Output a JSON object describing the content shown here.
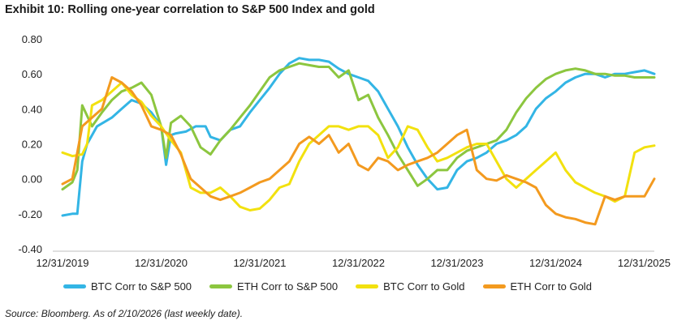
{
  "title": "Exhibit 10: Rolling one-year correlation to S&P 500 Index and gold",
  "source": "Source: Bloomberg. As of 2/10/2026 (last weekly date).",
  "chart_data": {
    "type": "line",
    "x_tick_labels": [
      "12/31/2019",
      "12/31/2020",
      "12/31/2021",
      "12/31/2022",
      "12/31/2023",
      "12/31/2024",
      "12/31/2025"
    ],
    "y_tick_labels": [
      "0.80",
      "0.60",
      "0.40",
      "0.20",
      "0.00",
      "-0.20",
      "-0.40"
    ],
    "ylim": [
      -0.4,
      0.8
    ],
    "xlim": [
      2020.0,
      2026.0
    ],
    "grid": false,
    "legend": "bottom",
    "series": [
      {
        "name": "BTC Corr to S&P 500",
        "color": "#33b5e5",
        "x": [
          2020.0,
          2020.1,
          2020.15,
          2020.2,
          2020.25,
          2020.35,
          2020.5,
          2020.6,
          2020.7,
          2020.8,
          2020.9,
          2021.0,
          2021.05,
          2021.1,
          2021.15,
          2021.25,
          2021.35,
          2021.45,
          2021.5,
          2021.6,
          2021.7,
          2021.8,
          2021.9,
          2022.0,
          2022.1,
          2022.2,
          2022.3,
          2022.4,
          2022.5,
          2022.6,
          2022.7,
          2022.8,
          2022.9,
          2023.0,
          2023.1,
          2023.2,
          2023.3,
          2023.4,
          2023.5,
          2023.6,
          2023.7,
          2023.8,
          2023.9,
          2024.0,
          2024.1,
          2024.2,
          2024.3,
          2024.4,
          2024.5,
          2024.6,
          2024.7,
          2024.8,
          2024.9,
          2025.0,
          2025.1,
          2025.2,
          2025.3,
          2025.4,
          2025.5,
          2025.6,
          2025.7,
          2025.8,
          2025.9,
          2026.0
        ],
        "values": [
          -0.21,
          -0.2,
          -0.2,
          0.1,
          0.2,
          0.3,
          0.35,
          0.4,
          0.45,
          0.43,
          0.38,
          0.3,
          0.08,
          0.25,
          0.26,
          0.27,
          0.3,
          0.3,
          0.24,
          0.22,
          0.28,
          0.3,
          0.38,
          0.45,
          0.52,
          0.6,
          0.66,
          0.69,
          0.68,
          0.68,
          0.67,
          0.63,
          0.6,
          0.58,
          0.56,
          0.5,
          0.4,
          0.3,
          0.18,
          0.08,
          0.0,
          -0.06,
          -0.05,
          0.05,
          0.1,
          0.12,
          0.15,
          0.2,
          0.22,
          0.25,
          0.3,
          0.4,
          0.46,
          0.5,
          0.55,
          0.58,
          0.6,
          0.6,
          0.58,
          0.6,
          0.6,
          0.61,
          0.62,
          0.6
        ]
      },
      {
        "name": "ETH Corr to S&P 500",
        "color": "#8cc63f",
        "x": [
          2020.0,
          2020.1,
          2020.15,
          2020.2,
          2020.3,
          2020.4,
          2020.5,
          2020.6,
          2020.7,
          2020.8,
          2020.9,
          2021.0,
          2021.05,
          2021.1,
          2021.2,
          2021.3,
          2021.4,
          2021.5,
          2021.6,
          2021.7,
          2021.8,
          2021.9,
          2022.0,
          2022.1,
          2022.2,
          2022.3,
          2022.4,
          2022.5,
          2022.6,
          2022.7,
          2022.8,
          2022.9,
          2023.0,
          2023.1,
          2023.2,
          2023.3,
          2023.4,
          2023.5,
          2023.6,
          2023.7,
          2023.8,
          2023.9,
          2024.0,
          2024.1,
          2024.2,
          2024.3,
          2024.4,
          2024.5,
          2024.6,
          2024.7,
          2024.8,
          2024.9,
          2025.0,
          2025.1,
          2025.2,
          2025.3,
          2025.4,
          2025.5,
          2025.6,
          2025.7,
          2025.8,
          2025.9,
          2026.0
        ],
        "values": [
          -0.06,
          -0.02,
          0.05,
          0.42,
          0.3,
          0.38,
          0.45,
          0.5,
          0.52,
          0.55,
          0.48,
          0.3,
          0.12,
          0.32,
          0.36,
          0.3,
          0.18,
          0.14,
          0.22,
          0.28,
          0.35,
          0.42,
          0.5,
          0.58,
          0.62,
          0.64,
          0.66,
          0.65,
          0.64,
          0.64,
          0.58,
          0.62,
          0.45,
          0.48,
          0.35,
          0.25,
          0.14,
          0.05,
          -0.04,
          0.0,
          0.05,
          0.05,
          0.12,
          0.16,
          0.18,
          0.2,
          0.22,
          0.28,
          0.38,
          0.46,
          0.52,
          0.57,
          0.6,
          0.62,
          0.63,
          0.62,
          0.6,
          0.6,
          0.59,
          0.59,
          0.58,
          0.58,
          0.58
        ]
      },
      {
        "name": "BTC Corr to Gold",
        "color": "#f2e10f",
        "x": [
          2020.0,
          2020.1,
          2020.2,
          2020.25,
          2020.3,
          2020.4,
          2020.5,
          2020.6,
          2020.7,
          2020.8,
          2020.9,
          2021.0,
          2021.1,
          2021.2,
          2021.3,
          2021.4,
          2021.5,
          2021.6,
          2021.7,
          2021.8,
          2021.9,
          2022.0,
          2022.1,
          2022.2,
          2022.3,
          2022.4,
          2022.5,
          2022.6,
          2022.7,
          2022.8,
          2022.9,
          2023.0,
          2023.1,
          2023.2,
          2023.3,
          2023.4,
          2023.5,
          2023.6,
          2023.7,
          2023.8,
          2023.9,
          2024.0,
          2024.1,
          2024.2,
          2024.3,
          2024.4,
          2024.5,
          2024.6,
          2024.7,
          2024.8,
          2024.9,
          2025.0,
          2025.1,
          2025.2,
          2025.3,
          2025.4,
          2025.5,
          2025.6,
          2025.7,
          2025.8,
          2025.9,
          2026.0
        ],
        "values": [
          0.15,
          0.13,
          0.14,
          0.2,
          0.42,
          0.45,
          0.5,
          0.55,
          0.48,
          0.44,
          0.36,
          0.3,
          0.22,
          0.15,
          -0.05,
          -0.08,
          -0.08,
          -0.05,
          -0.1,
          -0.16,
          -0.18,
          -0.17,
          -0.12,
          -0.05,
          -0.03,
          0.1,
          0.2,
          0.25,
          0.3,
          0.3,
          0.28,
          0.3,
          0.3,
          0.25,
          0.12,
          0.18,
          0.3,
          0.28,
          0.18,
          0.1,
          0.12,
          0.15,
          0.18,
          0.2,
          0.2,
          0.1,
          0.0,
          -0.05,
          0.0,
          0.05,
          0.1,
          0.15,
          0.05,
          -0.02,
          -0.05,
          -0.08,
          -0.1,
          -0.13,
          -0.1,
          0.15,
          0.18,
          0.19
        ]
      },
      {
        "name": "ETH Corr to Gold",
        "color": "#f39a1f",
        "x": [
          2020.0,
          2020.1,
          2020.2,
          2020.3,
          2020.4,
          2020.5,
          2020.6,
          2020.7,
          2020.8,
          2020.9,
          2021.0,
          2021.1,
          2021.2,
          2021.3,
          2021.4,
          2021.5,
          2021.6,
          2021.7,
          2021.8,
          2021.9,
          2022.0,
          2022.1,
          2022.2,
          2022.3,
          2022.4,
          2022.5,
          2022.6,
          2022.7,
          2022.8,
          2022.9,
          2023.0,
          2023.1,
          2023.2,
          2023.3,
          2023.4,
          2023.5,
          2023.6,
          2023.7,
          2023.8,
          2023.9,
          2024.0,
          2024.1,
          2024.2,
          2024.3,
          2024.4,
          2024.5,
          2024.6,
          2024.7,
          2024.8,
          2024.9,
          2025.0,
          2025.1,
          2025.2,
          2025.3,
          2025.4,
          2025.5,
          2025.6,
          2025.7,
          2025.8,
          2025.9,
          2026.0
        ],
        "values": [
          -0.03,
          0.0,
          0.3,
          0.35,
          0.4,
          0.58,
          0.55,
          0.5,
          0.42,
          0.3,
          0.28,
          0.25,
          0.14,
          0.0,
          -0.05,
          -0.1,
          -0.12,
          -0.1,
          -0.08,
          -0.05,
          -0.02,
          0.0,
          0.05,
          0.1,
          0.2,
          0.24,
          0.2,
          0.25,
          0.15,
          0.2,
          0.08,
          0.05,
          0.12,
          0.1,
          0.05,
          0.08,
          0.1,
          0.12,
          0.15,
          0.2,
          0.25,
          0.28,
          0.05,
          0.0,
          -0.01,
          0.02,
          0.0,
          -0.02,
          -0.05,
          -0.15,
          -0.2,
          -0.22,
          -0.23,
          -0.25,
          -0.26,
          -0.1,
          -0.12,
          -0.1,
          -0.1,
          -0.1,
          0.0
        ]
      }
    ]
  }
}
